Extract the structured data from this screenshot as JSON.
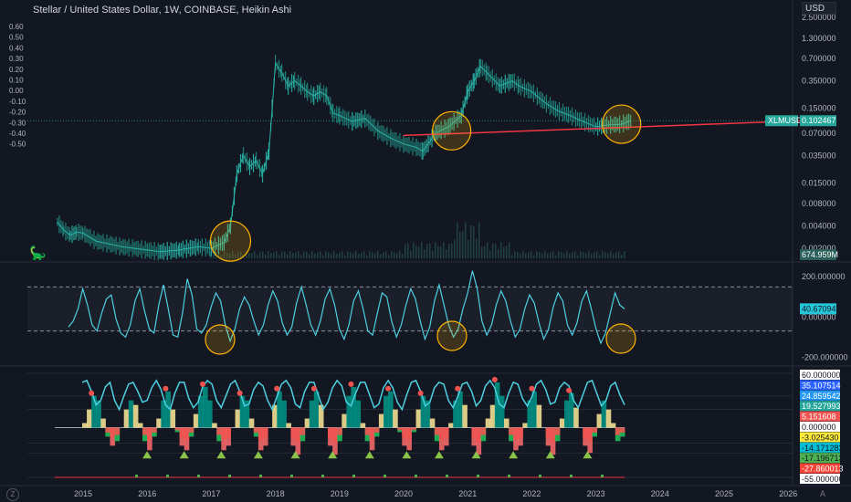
{
  "header": {
    "title": "Stellar / United States Dollar, 1W, COINBASE, Heikin Ashi",
    "currency": "USD"
  },
  "left_axis": {
    "ticks": [
      "0.60",
      "0.50",
      "0.40",
      "0.30",
      "0.20",
      "0.10",
      "0.00",
      "-0.10",
      "-0.20",
      "-0.30",
      "-0.40",
      "-0.50"
    ]
  },
  "right_axis_main": {
    "ticks": [
      "2.500000",
      "1.300000",
      "0.700000",
      "0.350000",
      "0.150000",
      "0.070000",
      "0.035000",
      "0.015000",
      "0.008000",
      "0.004000",
      "0.002000"
    ],
    "symbol_label": "XLMUSD",
    "last_price": "0.102467",
    "volume_label": "674.959M"
  },
  "right_axis_osc1": {
    "ticks": [
      "200.000000",
      "0.000000",
      "-200.000000"
    ],
    "current_label": "40.670942"
  },
  "right_axis_osc2": {
    "labels": [
      {
        "text": "60.000000",
        "bg": "#ffffff",
        "fg": "#131722"
      },
      {
        "text": "35.107514",
        "bg": "#2962ff",
        "fg": "#ffffff"
      },
      {
        "text": "24.859542",
        "bg": "#2196f3",
        "fg": "#ffffff"
      },
      {
        "text": "19.527993",
        "bg": "#26a69a",
        "fg": "#ffffff"
      },
      {
        "text": "5.151608",
        "bg": "#ef5350",
        "fg": "#ffffff"
      },
      {
        "text": "0.000000",
        "bg": "#ffffff",
        "fg": "#131722"
      },
      {
        "text": "-3.025430",
        "bg": "#ffeb3b",
        "fg": "#131722"
      },
      {
        "text": "-14.171283",
        "bg": "#00bcd4",
        "fg": "#131722"
      },
      {
        "text": "-17.196713",
        "bg": "#4caf50",
        "fg": "#131722"
      },
      {
        "text": "-27.860013",
        "bg": "#f44336",
        "fg": "#ffffff"
      },
      {
        "text": "-55.000000",
        "bg": "#ffffff",
        "fg": "#131722"
      }
    ]
  },
  "x_axis": {
    "ticks": [
      "2015",
      "2016",
      "2017",
      "2018",
      "2019",
      "2020",
      "2021",
      "2022",
      "2023",
      "2024",
      "2025",
      "2026"
    ]
  },
  "colors": {
    "background": "#131722",
    "candle_up": "#26a69a",
    "candle_down": "#ef5350",
    "trendline": "#f23645",
    "circle": "#ffb300",
    "osc_line": "#4dd0e1",
    "teal_area": "#009688",
    "yellow_area": "#ffeb99",
    "red_area": "#ff6b6b",
    "green_fill": "#22c55e"
  },
  "chart_data": [
    {
      "type": "line",
      "title": "Stellar / United States Dollar, 1W, COINBASE, Heikin Ashi",
      "x_unit": "year",
      "log_scale": true,
      "series": [
        {
          "name": "XLMUSD",
          "points": [
            [
              2014.6,
              0.0045
            ],
            [
              2014.7,
              0.0035
            ],
            [
              2014.8,
              0.003
            ],
            [
              2014.9,
              0.0033
            ],
            [
              2015.0,
              0.0032
            ],
            [
              2015.2,
              0.0025
            ],
            [
              2015.4,
              0.0023
            ],
            [
              2015.6,
              0.0021
            ],
            [
              2015.8,
              0.002
            ],
            [
              2016.0,
              0.0019
            ],
            [
              2016.2,
              0.0018
            ],
            [
              2016.5,
              0.0019
            ],
            [
              2016.8,
              0.0021
            ],
            [
              2017.0,
              0.002
            ],
            [
              2017.2,
              0.0024
            ],
            [
              2017.3,
              0.004
            ],
            [
              2017.4,
              0.02
            ],
            [
              2017.5,
              0.035
            ],
            [
              2017.6,
              0.025
            ],
            [
              2017.7,
              0.03
            ],
            [
              2017.8,
              0.02
            ],
            [
              2017.9,
              0.04
            ],
            [
              2017.95,
              0.15
            ],
            [
              2018.0,
              0.6
            ],
            [
              2018.1,
              0.45
            ],
            [
              2018.2,
              0.3
            ],
            [
              2018.3,
              0.35
            ],
            [
              2018.4,
              0.3
            ],
            [
              2018.5,
              0.25
            ],
            [
              2018.6,
              0.22
            ],
            [
              2018.7,
              0.25
            ],
            [
              2018.8,
              0.22
            ],
            [
              2018.9,
              0.13
            ],
            [
              2019.0,
              0.12
            ],
            [
              2019.2,
              0.1
            ],
            [
              2019.4,
              0.11
            ],
            [
              2019.6,
              0.075
            ],
            [
              2019.8,
              0.06
            ],
            [
              2020.0,
              0.05
            ],
            [
              2020.2,
              0.045
            ],
            [
              2020.3,
              0.04
            ],
            [
              2020.5,
              0.07
            ],
            [
              2020.7,
              0.085
            ],
            [
              2020.9,
              0.12
            ],
            [
              2021.0,
              0.25
            ],
            [
              2021.1,
              0.35
            ],
            [
              2021.2,
              0.55
            ],
            [
              2021.3,
              0.45
            ],
            [
              2021.5,
              0.3
            ],
            [
              2021.7,
              0.35
            ],
            [
              2021.8,
              0.3
            ],
            [
              2022.0,
              0.25
            ],
            [
              2022.2,
              0.18
            ],
            [
              2022.4,
              0.14
            ],
            [
              2022.6,
              0.12
            ],
            [
              2022.8,
              0.1
            ],
            [
              2023.0,
              0.085
            ],
            [
              2023.2,
              0.09
            ],
            [
              2023.4,
              0.092
            ],
            [
              2023.55,
              0.102467
            ]
          ]
        }
      ],
      "trendline": {
        "from": [
          2020.0,
          0.065
        ],
        "to": [
          2026.2,
          0.102
        ]
      },
      "annotations": [
        "circle ~2017.1 low",
        "circle ~2020.7 retest",
        "circle ~2023.4 retest"
      ],
      "volume_last": "674.959M"
    },
    {
      "type": "line",
      "title": "",
      "ylim": [
        -230,
        260
      ],
      "reference_lines": [
        150,
        -70
      ],
      "current": 40.670942,
      "series": [
        {
          "name": "",
          "values": [
            -50,
            -20,
            40,
            140,
            60,
            -40,
            -70,
            20,
            90,
            110,
            -10,
            -80,
            -100,
            -40,
            80,
            140,
            30,
            -60,
            -80,
            60,
            160,
            40,
            -90,
            -100,
            20,
            190,
            110,
            -60,
            -80,
            -40,
            50,
            120,
            80,
            -40,
            -120,
            -60,
            40,
            100,
            60,
            -20,
            -90,
            -40,
            60,
            130,
            80,
            -30,
            -90,
            -50,
            70,
            150,
            60,
            -40,
            -90,
            -20,
            90,
            140,
            60,
            -60,
            -110,
            -40,
            80,
            130,
            40,
            -70,
            -90,
            20,
            120,
            100,
            -20,
            -100,
            -40,
            60,
            140,
            90,
            -20,
            -110,
            -50,
            80,
            160,
            60,
            -40,
            -100,
            -60,
            40,
            120,
            230,
            140,
            -20,
            -90,
            -40,
            60,
            130,
            80,
            -20,
            -100,
            -60,
            40,
            110,
            70,
            -30,
            -110,
            -60,
            50,
            120,
            80,
            -40,
            -90,
            -30,
            80,
            130,
            40,
            -60,
            -130,
            -80,
            20,
            120,
            60,
            40
          ]
        }
      ]
    },
    {
      "type": "area",
      "title": "",
      "ylim": [
        -60,
        65
      ],
      "series_names": [],
      "series": [
        {
          "name": "",
          "values": [
            50,
            52,
            40,
            25,
            30,
            45,
            50,
            30,
            20,
            35,
            48,
            50,
            40,
            28,
            30,
            44,
            52,
            42,
            25,
            20,
            38,
            50,
            50,
            32,
            22,
            28,
            45,
            52,
            48,
            30,
            22,
            35,
            48,
            52,
            40,
            24,
            26,
            42,
            50,
            46,
            30,
            20,
            34,
            48,
            52,
            44,
            26,
            22,
            40,
            50,
            50,
            35,
            20,
            28,
            44,
            52,
            46,
            28,
            24,
            38,
            50,
            50,
            36,
            22,
            26,
            44,
            52,
            44,
            28,
            20,
            36,
            50,
            52,
            40,
            24,
            28,
            44,
            50,
            48,
            30,
            22,
            34,
            48,
            50,
            40,
            24,
            30,
            46,
            52,
            44,
            26,
            22,
            38,
            50,
            48,
            32,
            24,
            34,
            48,
            52,
            42,
            26,
            28,
            44,
            50,
            46,
            30,
            22,
            36,
            50,
            52,
            38,
            24,
            30,
            46,
            50,
            36,
            25
          ]
        },
        {
          "name": "",
          "values": [
            5,
            20,
            35,
            30,
            10,
            -10,
            -20,
            -15,
            0,
            20,
            30,
            25,
            5,
            -15,
            -25,
            -10,
            10,
            30,
            40,
            20,
            -5,
            -20,
            -25,
            -10,
            15,
            35,
            45,
            30,
            5,
            -15,
            -25,
            -20,
            0,
            20,
            35,
            30,
            10,
            -10,
            -25,
            -20,
            0,
            25,
            40,
            30,
            5,
            -20,
            -30,
            -15,
            10,
            30,
            40,
            25,
            0,
            -20,
            -30,
            -15,
            15,
            35,
            45,
            30,
            5,
            -15,
            -25,
            -10,
            15,
            35,
            40,
            20,
            -5,
            -20,
            -25,
            -5,
            20,
            35,
            30,
            10,
            -15,
            -25,
            -20,
            5,
            30,
            40,
            25,
            0,
            -20,
            -30,
            -15,
            10,
            25,
            50,
            35,
            10,
            -15,
            -25,
            -20,
            5,
            30,
            40,
            25,
            0,
            -20,
            -30,
            -15,
            10,
            30,
            38,
            22,
            0,
            -20,
            -28,
            -10,
            15,
            30,
            20,
            5,
            -15,
            -10,
            0
          ]
        }
      ],
      "markers": "green triangles at oscillator lows; red dots at highs"
    }
  ]
}
